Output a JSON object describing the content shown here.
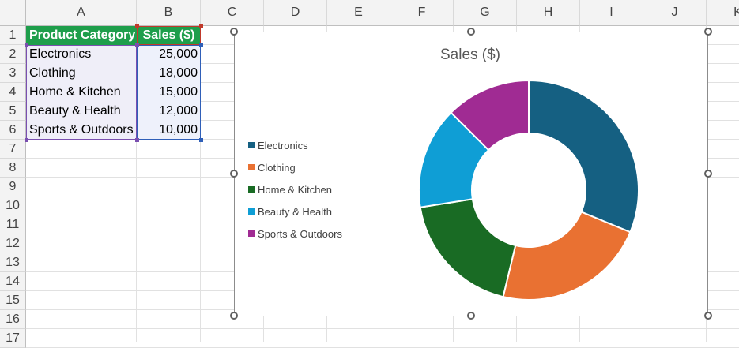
{
  "columns": [
    "A",
    "B",
    "C",
    "D",
    "E",
    "F",
    "G",
    "H",
    "I",
    "J",
    "K"
  ],
  "rows": [
    "1",
    "2",
    "3",
    "4",
    "5",
    "6",
    "7",
    "8",
    "9",
    "10",
    "11",
    "12",
    "13",
    "14",
    "15",
    "16",
    "17"
  ],
  "table": {
    "headers": [
      "Product Category",
      "Sales ($)"
    ],
    "rows": [
      {
        "category": "Electronics",
        "sales": "25,000"
      },
      {
        "category": "Clothing",
        "sales": "18,000"
      },
      {
        "category": "Home & Kitchen",
        "sales": "15,000"
      },
      {
        "category": "Beauty & Health",
        "sales": "12,000"
      },
      {
        "category": "Sports & Outdoors",
        "sales": "10,000"
      }
    ]
  },
  "colors": {
    "header_fill": "#1e9e4b",
    "grid_line": "#e1e1e1"
  },
  "chart_data": {
    "type": "pie",
    "variant": "doughnut",
    "title": "Sales ($)",
    "legend_position": "left",
    "categories": [
      "Electronics",
      "Clothing",
      "Home & Kitchen",
      "Beauty & Health",
      "Sports & Outdoors"
    ],
    "values": [
      25000,
      18000,
      15000,
      12000,
      10000
    ],
    "colors": [
      "#156082",
      "#e97132",
      "#196b24",
      "#0f9ed5",
      "#a02b93"
    ]
  }
}
